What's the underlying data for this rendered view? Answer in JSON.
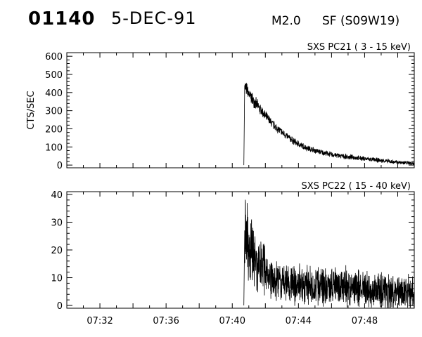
{
  "header": {
    "event_id": "01140",
    "date": "5-DEC-91",
    "flare_class": "M2.0",
    "location": "SF (S09W19)"
  },
  "chart_data": [
    {
      "type": "line",
      "title": "SXS PC21  (  3 - 15 keV)",
      "ylabel": "CTS/SEC",
      "xlabel": "",
      "y_ticks": [
        0,
        100,
        200,
        300,
        400,
        500,
        600
      ],
      "y_tick_labels": [
        "0",
        "100",
        "200",
        "300",
        "400",
        "500",
        "600"
      ],
      "ylim": [
        -15,
        620
      ],
      "xlim": [
        "07:30:00",
        "07:51:00"
      ],
      "grid": false,
      "series": [
        {
          "x": [
            "07:40:42",
            "07:40:45",
            "07:41:00",
            "07:41:30",
            "07:42:00",
            "07:42:30",
            "07:43:00",
            "07:43:30",
            "07:44:00",
            "07:44:30",
            "07:45:00",
            "07:45:30",
            "07:46:00",
            "07:47:00",
            "07:48:00",
            "07:49:00",
            "07:50:00",
            "07:51:00"
          ],
          "y": [
            0,
            440,
            390,
            330,
            270,
            220,
            180,
            145,
            115,
            95,
            80,
            68,
            58,
            45,
            35,
            25,
            15,
            10
          ]
        }
      ]
    },
    {
      "type": "line",
      "title": "SXS PC22  ( 15 - 40 keV)",
      "ylabel": "",
      "xlabel": "",
      "y_ticks": [
        0,
        10,
        20,
        30,
        40
      ],
      "y_tick_labels": [
        "0",
        "10",
        "20",
        "30",
        "40"
      ],
      "ylim": [
        -1,
        41
      ],
      "xlim": [
        "07:30:00",
        "07:51:00"
      ],
      "x_ticks": [
        "07:32",
        "07:36",
        "07:40",
        "07:44",
        "07:48"
      ],
      "grid": false,
      "series": [
        {
          "x": [
            "07:40:42",
            "07:40:45",
            "07:41:00",
            "07:41:30",
            "07:42:00",
            "07:42:30",
            "07:43:00",
            "07:43:30",
            "07:44:00",
            "07:45:00",
            "07:46:00",
            "07:47:00",
            "07:48:00",
            "07:49:00",
            "07:50:00",
            "07:51:00"
          ],
          "y": [
            0,
            27,
            21,
            15,
            12,
            10,
            9,
            8,
            7.5,
            7,
            7,
            6.5,
            6,
            5,
            4.5,
            5
          ]
        }
      ]
    }
  ]
}
